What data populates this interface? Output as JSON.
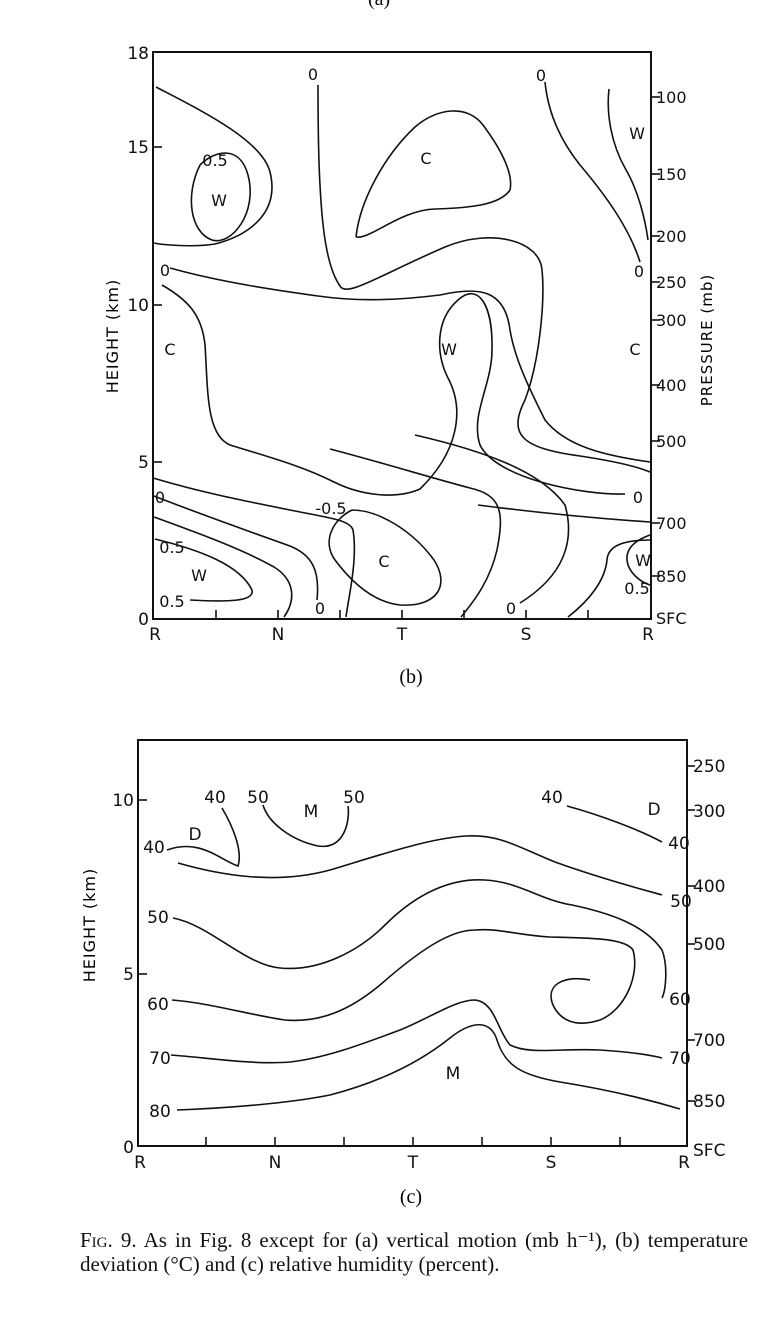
{
  "top_partial_label": "(a)",
  "caption": {
    "fig_label": "Fig. 9.",
    "text": "As in Fig. 8 except for (a) vertical motion (mb h⁻¹), (b) temperature deviation (°C) and (c) relative humidity (percent)."
  },
  "chart_data": [
    {
      "panel": "(b)",
      "type": "contour",
      "ylabel": "HEIGHT (km)",
      "y2label": "PRESSURE (mb)",
      "ylim": [
        0,
        18
      ],
      "y_ticks": [
        0,
        5,
        10,
        15,
        18
      ],
      "x_ticks": [
        "R",
        "N",
        "T",
        "S",
        "R"
      ],
      "pressure_ticks": [
        {
          "label": "100",
          "height": 16.5
        },
        {
          "label": "150",
          "height": 14
        },
        {
          "label": "200",
          "height": 12
        },
        {
          "label": "250",
          "height": 10.7
        },
        {
          "label": "300",
          "height": 9.6
        },
        {
          "label": "400",
          "height": 7.5
        },
        {
          "label": "500",
          "height": 5.8
        },
        {
          "label": "700",
          "height": 3.0
        },
        {
          "label": "850",
          "height": 1.5
        },
        {
          "label": "SFC",
          "height": 0
        }
      ],
      "contour_labels": [
        "0",
        "0",
        "0",
        "0.5",
        "0",
        "0",
        "0",
        "0.5",
        "0.5",
        "-0.5",
        "0",
        "0",
        "0.5"
      ],
      "region_labels": [
        "W",
        "C",
        "W",
        "W",
        "C",
        "C",
        "W",
        "C",
        "W"
      ]
    },
    {
      "panel": "(c)",
      "type": "contour",
      "ylabel": "HEIGHT (km)",
      "ylim": [
        0,
        12
      ],
      "y_ticks": [
        0,
        5,
        10
      ],
      "x_ticks": [
        "R",
        "N",
        "T",
        "S",
        "R"
      ],
      "pressure_ticks": [
        {
          "label": "250",
          "height": 11
        },
        {
          "label": "300",
          "height": 9.8
        },
        {
          "label": "400",
          "height": 7.6
        },
        {
          "label": "500",
          "height": 5.9
        },
        {
          "label": "700",
          "height": 3.1
        },
        {
          "label": "850",
          "height": 1.5
        },
        {
          "label": "SFC",
          "height": 0
        }
      ],
      "contour_labels": [
        "40",
        "40",
        "50",
        "50",
        "40",
        "40",
        "50",
        "50",
        "60",
        "60",
        "70",
        "70",
        "80"
      ],
      "region_labels": [
        "D",
        "M",
        "D",
        "M"
      ]
    }
  ]
}
